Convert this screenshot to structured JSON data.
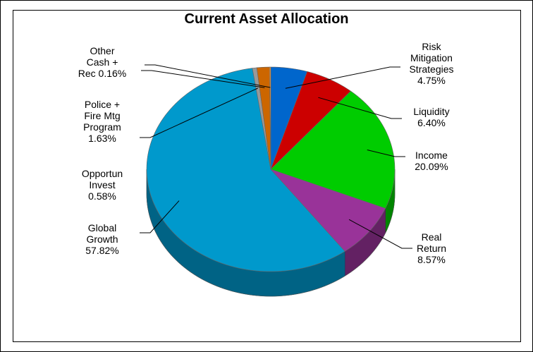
{
  "chart_data": {
    "type": "pie",
    "title": "Current Asset Allocation",
    "categories": [
      "Risk Mitigation Strategies",
      "Liquidity",
      "Income",
      "Real Return",
      "Global Growth",
      "Opportun Invest",
      "Police + Fire Mtg Program",
      "Other Cash + Rec"
    ],
    "values": [
      4.75,
      6.4,
      20.09,
      8.57,
      57.82,
      0.58,
      1.63,
      0.16
    ],
    "value_labels": [
      "4.75%",
      "6.40%",
      "20.09%",
      "8.57%",
      "57.82%",
      "0.58%",
      "1.63%",
      "0.16%"
    ],
    "colors": [
      "#0066cc",
      "#cc0000",
      "#00cc00",
      "#993399",
      "#0099cc",
      "#999999",
      "#cc6600",
      "#ff9933"
    ]
  }
}
